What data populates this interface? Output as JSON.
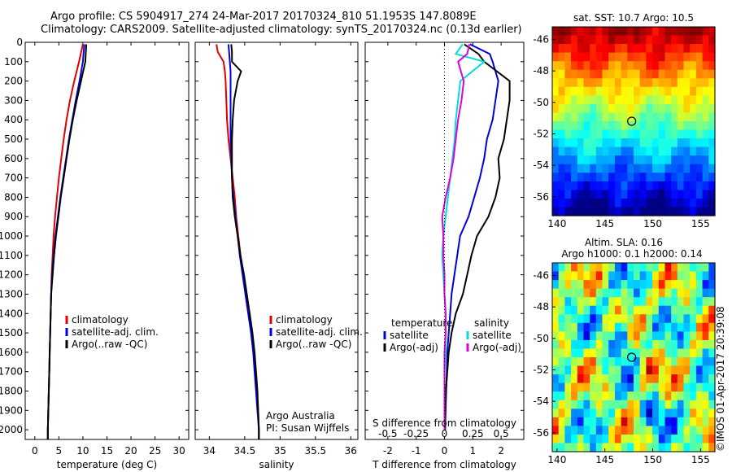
{
  "header": {
    "line1": "Argo profile: CS 5904917_274 24-Mar-2017 20170324_810 51.1953S 147.8089E",
    "line2": "Climatology: CARS2009. Satellite-adjusted climatology: synTS_20170324.nc (0.13d earlier)"
  },
  "colors": {
    "climatology": "#e00000",
    "satellite": "#0000dd",
    "argo": "#000000",
    "satellite_s": "#00dddd",
    "argo_s": "#dd00dd"
  },
  "chart_data": [
    {
      "type": "line",
      "name": "temperature-profile",
      "xlabel": "temperature (deg C)",
      "ylabel": "",
      "xlim": [
        -2,
        32
      ],
      "ylim": [
        2050,
        0
      ],
      "xticks": [
        0,
        5,
        10,
        15,
        20,
        25,
        30
      ],
      "yticks": [
        0,
        100,
        200,
        300,
        400,
        500,
        600,
        700,
        800,
        900,
        1000,
        1100,
        1200,
        1300,
        1400,
        1500,
        1600,
        1700,
        1800,
        1900,
        2000
      ],
      "legend": {
        "position": "lower-center",
        "entries": [
          "climatology",
          "satellite-adj. clim.",
          "Argo(..raw -QC)"
        ]
      },
      "series": [
        {
          "name": "climatology",
          "color": "#e00000",
          "depth": [
            10,
            100,
            200,
            300,
            400,
            500,
            600,
            700,
            800,
            900,
            1000,
            1100,
            1200,
            1300,
            1400,
            1500,
            1600,
            1700,
            1800,
            1900,
            2000,
            2050
          ],
          "values": [
            10.0,
            9.2,
            8.2,
            7.3,
            6.6,
            6.0,
            5.5,
            5.0,
            4.6,
            4.2,
            3.9,
            3.7,
            3.5,
            3.4,
            3.3,
            3.2,
            3.1,
            3.0,
            2.9,
            2.8,
            2.7,
            2.7
          ]
        },
        {
          "name": "satellite-adj. clim.",
          "color": "#0000dd",
          "depth": [
            10,
            100,
            200,
            300,
            400,
            500,
            600,
            700,
            800,
            900,
            1000,
            1100,
            1200,
            1300,
            1400,
            1500,
            1600,
            1700,
            1800,
            1900,
            2000,
            2050
          ],
          "values": [
            10.3,
            10.0,
            9.3,
            8.5,
            7.8,
            7.1,
            6.5,
            5.9,
            5.3,
            4.8,
            4.3,
            3.9,
            3.6,
            3.4,
            3.3,
            3.2,
            3.1,
            3.0,
            2.9,
            2.8,
            2.7,
            2.7
          ]
        },
        {
          "name": "Argo(..raw -QC)",
          "color": "#000000",
          "depth": [
            10,
            100,
            200,
            300,
            400,
            500,
            600,
            700,
            800,
            900,
            1000,
            1100,
            1200,
            1300,
            1400,
            1500,
            1600,
            1700,
            1800,
            1900,
            2000,
            2050
          ],
          "values": [
            10.7,
            10.5,
            9.6,
            8.7,
            7.9,
            7.2,
            6.6,
            6.0,
            5.4,
            4.9,
            4.4,
            4.0,
            3.7,
            3.4,
            3.3,
            3.2,
            3.1,
            3.0,
            2.9,
            2.8,
            2.7,
            2.7
          ]
        }
      ]
    },
    {
      "type": "line",
      "name": "salinity-profile",
      "xlabel": "salinity",
      "ylabel": "",
      "xlim": [
        33.8,
        36.1
      ],
      "ylim": [
        2050,
        0
      ],
      "xticks": [
        34,
        34.5,
        35,
        35.5,
        36
      ],
      "legend": {
        "position": "lower-center",
        "entries": [
          "climatology",
          "satellite-adj. clim.",
          "Argo(..raw -QC)"
        ]
      },
      "annotation": [
        "Argo Australia",
        "PI: Susan Wijffels"
      ],
      "series": [
        {
          "name": "climatology",
          "color": "#e00000",
          "depth": [
            10,
            50,
            100,
            150,
            200,
            300,
            400,
            500,
            600,
            700,
            800,
            900,
            1000,
            1100,
            1200,
            1300,
            1400,
            1500,
            1600,
            1700,
            1800,
            1900,
            2000,
            2050
          ],
          "values": [
            34.1,
            34.12,
            34.2,
            34.22,
            34.23,
            34.24,
            34.25,
            34.27,
            34.3,
            34.33,
            34.36,
            34.38,
            34.41,
            34.44,
            34.48,
            34.52,
            34.56,
            34.6,
            34.63,
            34.65,
            34.67,
            34.69,
            34.7,
            34.7
          ]
        },
        {
          "name": "satellite-adj. clim.",
          "color": "#0000dd",
          "depth": [
            10,
            50,
            100,
            150,
            200,
            300,
            400,
            500,
            600,
            700,
            800,
            900,
            1000,
            1100,
            1200,
            1300,
            1400,
            1500,
            1600,
            1700,
            1800,
            1900,
            2000,
            2050
          ],
          "values": [
            34.27,
            34.28,
            34.29,
            34.3,
            34.3,
            34.3,
            34.3,
            34.3,
            34.31,
            34.32,
            34.34,
            34.37,
            34.4,
            34.43,
            34.47,
            34.51,
            34.55,
            34.59,
            34.62,
            34.64,
            34.66,
            34.68,
            34.7,
            34.7
          ]
        },
        {
          "name": "Argo(..raw -QC)",
          "color": "#000000",
          "depth": [
            10,
            50,
            100,
            150,
            200,
            300,
            400,
            500,
            600,
            700,
            800,
            900,
            1000,
            1100,
            1200,
            1300,
            1400,
            1500,
            1600,
            1700,
            1800,
            1900,
            2000,
            2050
          ],
          "values": [
            34.31,
            34.32,
            34.32,
            34.45,
            34.4,
            34.35,
            34.33,
            34.32,
            34.32,
            34.32,
            34.33,
            34.36,
            34.4,
            34.44,
            34.49,
            34.53,
            34.57,
            34.61,
            34.64,
            34.66,
            34.68,
            34.69,
            34.7,
            34.7
          ]
        }
      ]
    },
    {
      "type": "line",
      "name": "difference-profile",
      "xlabel": "T difference from climatology",
      "xlabel_top": "S difference from climatology",
      "xlim": [
        -2.8,
        2.8
      ],
      "ylim": [
        2050,
        0
      ],
      "xticks": [
        -2,
        -1,
        0,
        1,
        2
      ],
      "xticks_top": [
        -0.5,
        -0.25,
        0,
        0.25,
        0.5
      ],
      "legend": {
        "position": "lower-center",
        "groups": [
          {
            "heading": "temperature",
            "entries": [
              "satellite",
              "Argo(-adj)"
            ]
          },
          {
            "heading": "salinity",
            "entries": [
              "satellite",
              "Argo(-adj)"
            ]
          }
        ]
      },
      "series": [
        {
          "name": "temperature satellite",
          "color": "#0000dd",
          "depth": [
            10,
            60,
            100,
            200,
            300,
            400,
            500,
            600,
            700,
            800,
            900,
            1000,
            1100,
            1200,
            1300,
            1400,
            1500,
            1600,
            1700,
            1800,
            1900,
            2000
          ],
          "values": [
            0.9,
            1.6,
            1.7,
            1.9,
            1.8,
            1.7,
            1.5,
            1.4,
            1.25,
            1.05,
            0.85,
            0.55,
            0.45,
            0.35,
            0.25,
            0.2,
            0.15,
            0.1,
            0.08,
            0.06,
            0.04,
            0.02
          ]
        },
        {
          "name": "temperature Argo(-adj)",
          "color": "#000000",
          "depth": [
            10,
            60,
            100,
            200,
            300,
            400,
            500,
            600,
            700,
            800,
            900,
            1000,
            1100,
            1200,
            1300,
            1400,
            1500,
            1600,
            1700,
            1800,
            1900,
            2000
          ],
          "values": [
            0.7,
            1.2,
            1.4,
            2.3,
            2.3,
            2.2,
            2.1,
            1.9,
            1.95,
            1.8,
            1.55,
            1.15,
            0.95,
            0.8,
            0.65,
            0.4,
            0.25,
            0.15,
            0.1,
            0.05,
            0.03,
            0.02
          ]
        },
        {
          "name": "salinity satellite",
          "color": "#00dddd",
          "depth": [
            10,
            60,
            100,
            200,
            300,
            400,
            500,
            600,
            700,
            800,
            900,
            1000,
            1100,
            1200,
            1300,
            1400,
            1500,
            1600,
            1700,
            1800,
            1900,
            2000
          ],
          "values": [
            0.16,
            0.1,
            0.35,
            0.14,
            0.12,
            0.1,
            0.09,
            0.07,
            0.05,
            0.03,
            0.01,
            -0.01,
            -0.02,
            -0.01,
            0.0,
            0.01,
            0.01,
            0.01,
            0.0,
            0.0,
            0.0,
            0.0
          ]
        },
        {
          "name": "salinity Argo(-adj)",
          "color": "#dd00dd",
          "depth": [
            10,
            60,
            100,
            200,
            300,
            400,
            500,
            600,
            700,
            800,
            900,
            1000,
            1100,
            1200,
            1300,
            1400,
            1500,
            1600,
            1700,
            1800,
            1900,
            2000
          ],
          "values": [
            0.22,
            0.2,
            0.12,
            0.17,
            0.15,
            0.12,
            0.1,
            0.08,
            0.05,
            0.01,
            -0.02,
            -0.01,
            -0.01,
            0.0,
            0.0,
            0.01,
            0.01,
            0.0,
            0.0,
            0.0,
            0.0,
            0.0
          ]
        }
      ]
    },
    {
      "type": "heatmap",
      "name": "sst-map",
      "title": "sat. SST: 10.7 Argo: 10.5",
      "xlim": [
        139.5,
        156.5
      ],
      "ylim": [
        -57.2,
        -45.2
      ],
      "xticks": [
        140,
        145,
        150,
        155
      ],
      "yticks": [
        -46,
        -48,
        -50,
        -52,
        -54,
        -56
      ],
      "marker": {
        "lon": 147.8,
        "lat": -51.2
      }
    },
    {
      "type": "heatmap",
      "name": "sla-map",
      "title": "Altim. SLA: 0.16",
      "subtitle": "Argo h1000: 0.1 h2000: 0.14",
      "xlim": [
        139.5,
        156.5
      ],
      "ylim": [
        -57.2,
        -45.2
      ],
      "xticks": [
        140,
        145,
        150,
        155
      ],
      "yticks": [
        -46,
        -48,
        -50,
        -52,
        -54,
        -56
      ],
      "marker": {
        "lon": 147.8,
        "lat": -51.2
      },
      "side_label": "©IMOS 01-Apr-2017 20:39:08"
    }
  ]
}
